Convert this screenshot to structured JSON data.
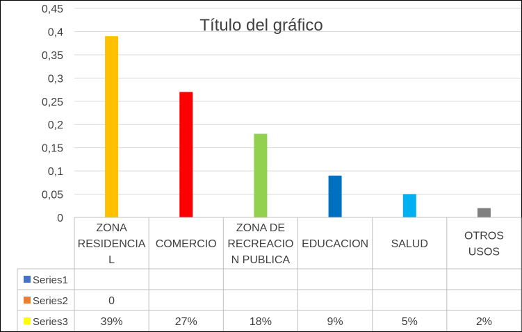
{
  "chart_data": {
    "type": "bar",
    "title": "Título del gráfico",
    "categories": [
      "ZONA RESIDENCIAL",
      "COMERCIO",
      "ZONA DE RECREACION PUBLICA",
      "EDUCACION",
      "SALUD",
      "OTROS USOS"
    ],
    "category_lines": [
      [
        "ZONA",
        "RESIDENCIA",
        "L"
      ],
      [
        "COMERCIO"
      ],
      [
        "ZONA DE",
        "RECREACIO",
        "N PUBLICA"
      ],
      [
        "EDUCACION"
      ],
      [
        "SALUD"
      ],
      [
        "OTROS",
        "USOS"
      ]
    ],
    "bar_values": [
      0.39,
      0.27,
      0.18,
      0.09,
      0.05,
      0.02
    ],
    "bar_colors": [
      "#FFC000",
      "#FF0000",
      "#92D050",
      "#0070C0",
      "#00B0F0",
      "#808080"
    ],
    "ylim": [
      0,
      0.45
    ],
    "y_ticks": [
      "0",
      "0,05",
      "0,1",
      "0,15",
      "0,2",
      "0,25",
      "0,3",
      "0,35",
      "0,4",
      "0,45"
    ],
    "grid": true,
    "data_table": {
      "rows": [
        {
          "name": "Series1",
          "color": "#4472C4",
          "cells": [
            "",
            "",
            "",
            "",
            "",
            ""
          ]
        },
        {
          "name": "Series2",
          "color": "#ED7D31",
          "cells": [
            "0",
            "",
            "",
            "",
            "",
            ""
          ]
        },
        {
          "name": "Series3",
          "color": "#FFFF00",
          "cells": [
            "39%",
            "27%",
            "18%",
            "9%",
            "5%",
            "2%"
          ]
        }
      ]
    }
  }
}
